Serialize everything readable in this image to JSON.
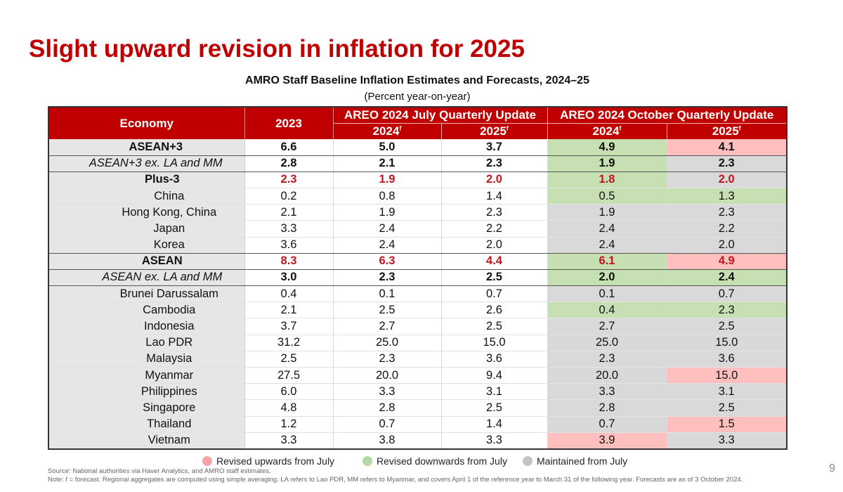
{
  "slide": {
    "title": "Slight upward revision in inflation for 2025",
    "page_number": "9"
  },
  "table": {
    "title": "AMRO Staff Baseline Inflation Estimates and Forecasts, 2024–25",
    "subtitle": "(Percent year-on-year)",
    "headers": {
      "economy": "Economy",
      "y2023": "2023",
      "july_group": "AREO 2024 July Quarterly Update",
      "oct_group": "AREO 2024 October Quarterly Update",
      "sub": [
        {
          "year": "2024",
          "sup": "f"
        },
        {
          "year": "2025",
          "sup": "f"
        },
        {
          "year": "2024",
          "sup": "f"
        },
        {
          "year": "2025",
          "sup": "f"
        }
      ]
    },
    "rows": [
      {
        "economy": "ASEAN+3",
        "level": "0",
        "y2023": "6.6",
        "jul24": "5.0",
        "jul25": "3.7",
        "oct24": "4.9",
        "oct25": "4.1",
        "oct24_status": "down",
        "oct25_status": "up"
      },
      {
        "economy": "ASEAN+3 ex. LA and MM",
        "level": "0i",
        "y2023": "2.8",
        "jul24": "2.1",
        "jul25": "2.3",
        "oct24": "1.9",
        "oct25": "2.3",
        "oct24_status": "down",
        "oct25_status": "same"
      },
      {
        "economy": "Plus-3",
        "level": "1",
        "y2023": "2.3",
        "jul24": "1.9",
        "jul25": "2.0",
        "oct24": "1.8",
        "oct25": "2.0",
        "oct24_status": "down",
        "oct25_status": "same"
      },
      {
        "economy": "China",
        "level": "2",
        "y2023": "0.2",
        "jul24": "0.8",
        "jul25": "1.4",
        "oct24": "0.5",
        "oct25": "1.3",
        "oct24_status": "down",
        "oct25_status": "down"
      },
      {
        "economy": "Hong Kong, China",
        "level": "2",
        "y2023": "2.1",
        "jul24": "1.9",
        "jul25": "2.3",
        "oct24": "1.9",
        "oct25": "2.3",
        "oct24_status": "same",
        "oct25_status": "same"
      },
      {
        "economy": "Japan",
        "level": "2",
        "y2023": "3.3",
        "jul24": "2.4",
        "jul25": "2.2",
        "oct24": "2.4",
        "oct25": "2.2",
        "oct24_status": "same",
        "oct25_status": "same"
      },
      {
        "economy": "Korea",
        "level": "2",
        "y2023": "3.6",
        "jul24": "2.4",
        "jul25": "2.0",
        "oct24": "2.4",
        "oct25": "2.0",
        "oct24_status": "same",
        "oct25_status": "same"
      },
      {
        "economy": "ASEAN",
        "level": "1",
        "y2023": "8.3",
        "jul24": "6.3",
        "jul25": "4.4",
        "oct24": "6.1",
        "oct25": "4.9",
        "oct24_status": "down",
        "oct25_status": "up"
      },
      {
        "economy": "ASEAN ex. LA and MM",
        "level": "1i",
        "y2023": "3.0",
        "jul24": "2.3",
        "jul25": "2.5",
        "oct24": "2.0",
        "oct25": "2.4",
        "oct24_status": "down",
        "oct25_status": "down"
      },
      {
        "economy": "Brunei Darussalam",
        "level": "2",
        "y2023": "0.4",
        "jul24": "0.1",
        "jul25": "0.7",
        "oct24": "0.1",
        "oct25": "0.7",
        "oct24_status": "same",
        "oct25_status": "same"
      },
      {
        "economy": "Cambodia",
        "level": "2",
        "y2023": "2.1",
        "jul24": "2.5",
        "jul25": "2.6",
        "oct24": "0.4",
        "oct25": "2.3",
        "oct24_status": "down",
        "oct25_status": "down"
      },
      {
        "economy": "Indonesia",
        "level": "2",
        "y2023": "3.7",
        "jul24": "2.7",
        "jul25": "2.5",
        "oct24": "2.7",
        "oct25": "2.5",
        "oct24_status": "same",
        "oct25_status": "same"
      },
      {
        "economy": "Lao PDR",
        "level": "2",
        "y2023": "31.2",
        "jul24": "25.0",
        "jul25": "15.0",
        "oct24": "25.0",
        "oct25": "15.0",
        "oct24_status": "same",
        "oct25_status": "same"
      },
      {
        "economy": "Malaysia",
        "level": "2",
        "y2023": "2.5",
        "jul24": "2.3",
        "jul25": "3.6",
        "oct24": "2.3",
        "oct25": "3.6",
        "oct24_status": "same",
        "oct25_status": "same"
      },
      {
        "economy": "Myanmar",
        "level": "2",
        "y2023": "27.5",
        "jul24": "20.0",
        "jul25": "9.4",
        "oct24": "20.0",
        "oct25": "15.0",
        "oct24_status": "same",
        "oct25_status": "up"
      },
      {
        "economy": "Philippines",
        "level": "2",
        "y2023": "6.0",
        "jul24": "3.3",
        "jul25": "3.1",
        "oct24": "3.3",
        "oct25": "3.1",
        "oct24_status": "same",
        "oct25_status": "same"
      },
      {
        "economy": "Singapore",
        "level": "2",
        "y2023": "4.8",
        "jul24": "2.8",
        "jul25": "2.5",
        "oct24": "2.8",
        "oct25": "2.5",
        "oct24_status": "same",
        "oct25_status": "same"
      },
      {
        "economy": "Thailand",
        "level": "2",
        "y2023": "1.2",
        "jul24": "0.7",
        "jul25": "1.4",
        "oct24": "0.7",
        "oct25": "1.5",
        "oct24_status": "same",
        "oct25_status": "up"
      },
      {
        "economy": "Vietnam",
        "level": "2",
        "y2023": "3.3",
        "jul24": "3.8",
        "jul25": "3.3",
        "oct24": "3.9",
        "oct25": "3.3",
        "oct24_status": "up",
        "oct25_status": "same"
      }
    ]
  },
  "legend": [
    {
      "label": "Revised upwards from July",
      "color": "#f4a6a6"
    },
    {
      "label": "Revised downwards from July",
      "color": "#b5d9a4"
    },
    {
      "label": "Maintained from July",
      "color": "#c4c4c4"
    }
  ],
  "colors": {
    "accent": "#c00000",
    "aggregate_text": "#c0161e",
    "up_fill": "#ffbfbf",
    "down_fill": "#c6e0b4",
    "same_fill": "#d9d9d9"
  },
  "footer": {
    "source": "Source: National authorities via Haver Analytics, and AMRO staff estimates.",
    "note": "Note: f = forecast. Regional aggregates are computed using simple averaging. LA refers to Lao PDR, MM refers to Myanmar, and covers April 1 of the reference year to March 31 of the following year. Forecasts are as of 3 October 2024."
  }
}
